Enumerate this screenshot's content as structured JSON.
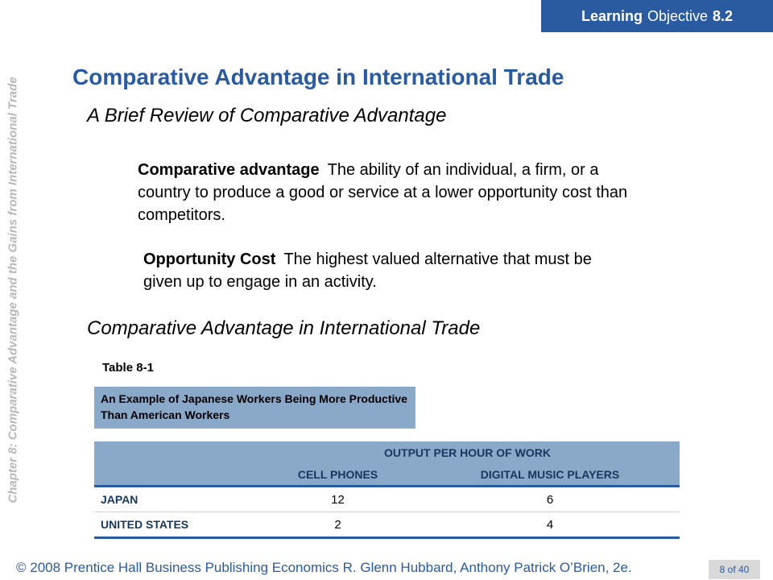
{
  "learning_objective": {
    "prefix": "Learning",
    "label": "Objective",
    "number": "8.2"
  },
  "side_caption": "Chapter 8:  Comparative Advantage and the Gains from International Trade",
  "title": "Comparative Advantage in International Trade",
  "subheading_1": "A Brief Review of Comparative Advantage",
  "definitions": [
    {
      "term": "Comparative advantage",
      "text": "The ability of an individual, a firm, or a country to produce a good or service at a lower opportunity cost than competitors."
    },
    {
      "term": "Opportunity Cost",
      "text": "The highest valued alternative that must be given up to engage in an activity."
    }
  ],
  "subheading_2": "Comparative Advantage in International Trade",
  "table": {
    "label": "Table 8-1",
    "caption": "An Example of Japanese Workers Being More Productive Than American Workers",
    "group_header": "OUTPUT PER HOUR OF WORK",
    "columns": [
      "",
      "CELL PHONES",
      "DIGITAL MUSIC PLAYERS"
    ],
    "rows": [
      {
        "country": "JAPAN",
        "cell_phones": "12",
        "music_players": "6"
      },
      {
        "country": "UNITED STATES",
        "cell_phones": "2",
        "music_players": "4"
      }
    ]
  },
  "footer": "© 2008 Prentice Hall Business Publishing   Economics  R. Glenn Hubbard, Anthony Patrick O’Brien, 2e.",
  "page_indicator": "8 of 40",
  "colors": {
    "accent_blue": "#2a5aa0",
    "table_fill": "#8aa8c8",
    "side_caption_gray": "#b7b7b7"
  }
}
